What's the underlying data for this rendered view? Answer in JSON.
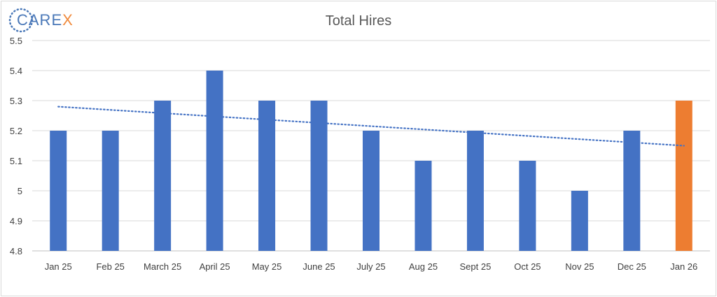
{
  "logo": {
    "text_main": "CARE",
    "text_accent": "X",
    "main_color": "#4a78b8",
    "accent_color": "#f08a3c"
  },
  "chart_data": {
    "type": "bar",
    "title": "Total Hires",
    "xlabel": "",
    "ylabel": "",
    "categories": [
      "Jan 25",
      "Feb 25",
      "March 25",
      "April 25",
      "May 25",
      "June 25",
      "July 25",
      "Aug 25",
      "Sept 25",
      "Oct 25",
      "Nov 25",
      "Dec 25",
      "Jan 26"
    ],
    "values": [
      5.2,
      5.2,
      5.3,
      5.4,
      5.3,
      5.3,
      5.2,
      5.1,
      5.2,
      5.1,
      5.0,
      5.2,
      5.3
    ],
    "ylim": [
      4.8,
      5.5
    ],
    "yticks": [
      "4.8",
      "4.9",
      "5",
      "5.1",
      "5.2",
      "5.3",
      "5.4",
      "5.5"
    ],
    "grid": true,
    "legend": "none",
    "bar_color": "#4472c4",
    "highlight_color": "#ed7d31",
    "highlight_index": 12,
    "trendline": {
      "type": "linear",
      "style": "dotted",
      "color": "#4472c4",
      "start_value": 5.28,
      "end_value": 5.15
    }
  }
}
